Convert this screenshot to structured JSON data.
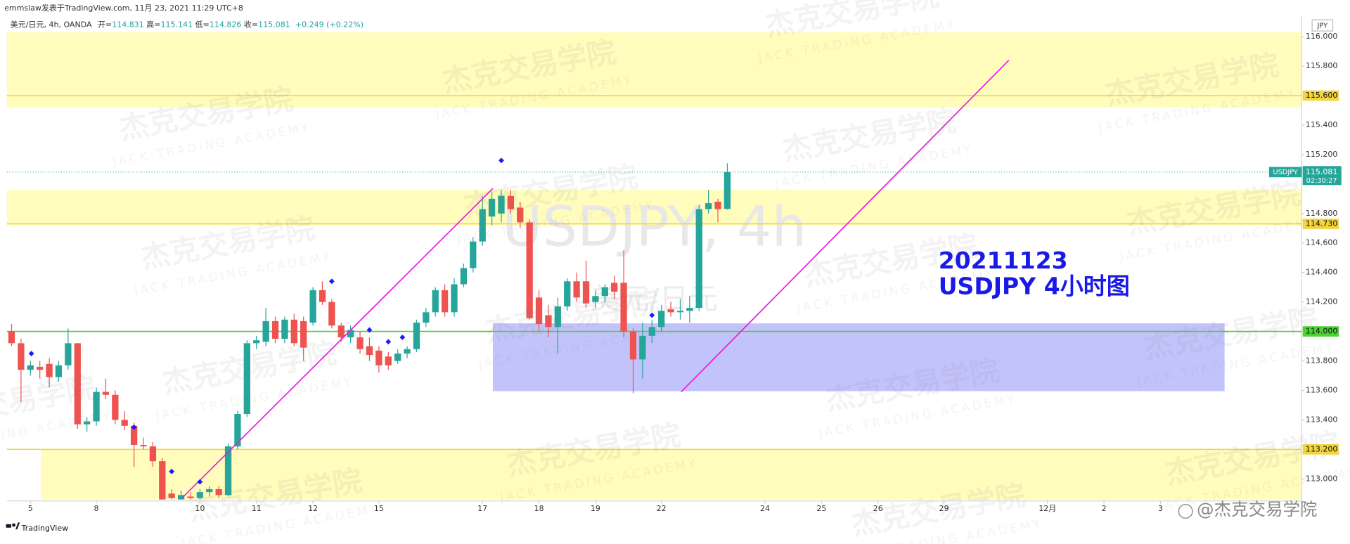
{
  "header": "emmslaw发表于TradingView.com, 11月 23, 2021 11:29 UTC+8",
  "chart_data": {
    "type": "candlestick",
    "title": "美元/日元, 4h, OANDA",
    "ohlc_labels": [
      "开=",
      "高=",
      "低=",
      "收="
    ],
    "change_label": "+0.249 (+0.22%)",
    "watermark": "USDJPY, 4h",
    "watermark_sub": "美元/日元",
    "brand_watermark": [
      "杰克交易学院",
      "JACK TRADING ACADEMY"
    ],
    "annotations": [
      "20211123",
      "USDJPY 4小时图"
    ],
    "currency": "JPY",
    "symbol": "USDJPY",
    "countdown": "02:30:27",
    "up_color": "#26a69a",
    "down_color": "#ef5350",
    "x": [
      0,
      1,
      2,
      3,
      4,
      5,
      6,
      7,
      8,
      9,
      10,
      11,
      12,
      13,
      14,
      15,
      16,
      17,
      18,
      19,
      20,
      21,
      22,
      23,
      24,
      25,
      26,
      27,
      28,
      29,
      30,
      31,
      32,
      33,
      34,
      35,
      36,
      37,
      38,
      39,
      40,
      41,
      42,
      43,
      44,
      45,
      46,
      47,
      48,
      49,
      50,
      51,
      52,
      53,
      54,
      55,
      56,
      57,
      58,
      59,
      60,
      61,
      62,
      63,
      64,
      65,
      66,
      67,
      68,
      69,
      70,
      71,
      72,
      73,
      74,
      75,
      76
    ],
    "open": [
      114.0,
      113.92,
      113.74,
      113.76,
      113.78,
      113.69,
      113.77,
      113.92,
      113.37,
      113.39,
      113.59,
      113.57,
      113.4,
      113.36,
      113.23,
      113.22,
      113.12,
      112.9,
      112.86,
      112.88,
      112.87,
      112.91,
      112.93,
      112.89,
      113.22,
      113.44,
      113.92,
      113.93,
      114.07,
      113.95,
      114.08,
      114.07,
      114.06,
      114.28,
      114.2,
      114.04,
      113.96,
      113.96,
      113.9,
      113.87,
      113.83,
      113.8,
      113.85,
      113.88,
      114.06,
      114.13,
      114.28,
      114.13,
      114.32,
      114.43,
      114.61,
      114.78,
      114.8,
      114.92,
      114.84,
      114.74,
      114.23,
      114.11,
      114.03,
      114.17,
      114.34,
      114.34,
      114.2,
      114.24,
      114.33,
      114.33,
      114.0,
      113.81,
      113.97,
      114.03,
      114.15,
      114.13,
      114.14,
      114.16,
      114.83,
      114.88,
      114.831
    ],
    "high": [
      114.05,
      113.95,
      113.8,
      113.8,
      113.82,
      113.8,
      114.02,
      113.92,
      113.42,
      113.62,
      113.68,
      113.6,
      113.46,
      113.38,
      113.28,
      113.25,
      113.14,
      112.93,
      112.92,
      112.91,
      112.93,
      112.95,
      112.95,
      113.24,
      113.46,
      113.94,
      113.97,
      114.16,
      114.1,
      114.1,
      114.12,
      114.1,
      114.3,
      114.34,
      114.22,
      114.06,
      114.04,
      114.0,
      113.96,
      113.9,
      113.86,
      113.88,
      113.9,
      114.08,
      114.16,
      114.3,
      114.32,
      114.36,
      114.46,
      114.64,
      114.92,
      114.95,
      114.96,
      114.96,
      114.88,
      114.76,
      114.28,
      114.18,
      114.23,
      114.36,
      114.4,
      114.48,
      114.28,
      114.32,
      114.38,
      114.55,
      114.02,
      114.06,
      114.08,
      114.18,
      114.2,
      114.22,
      114.24,
      114.86,
      114.96,
      114.9,
      115.141
    ],
    "low": [
      113.9,
      113.52,
      113.7,
      113.68,
      113.62,
      113.66,
      113.74,
      113.34,
      113.32,
      113.36,
      113.54,
      113.37,
      113.33,
      113.08,
      113.2,
      113.08,
      112.86,
      112.86,
      112.86,
      112.86,
      112.86,
      112.88,
      112.87,
      112.88,
      113.2,
      113.42,
      113.88,
      113.9,
      113.92,
      113.92,
      113.9,
      113.8,
      114.04,
      114.18,
      114.02,
      113.93,
      113.92,
      113.85,
      113.8,
      113.72,
      113.74,
      113.78,
      113.82,
      113.86,
      114.03,
      114.1,
      114.1,
      114.1,
      114.3,
      114.4,
      114.58,
      114.72,
      114.74,
      114.8,
      114.7,
      114.08,
      114.0,
      113.96,
      113.85,
      114.14,
      114.2,
      114.16,
      114.16,
      114.2,
      114.22,
      113.96,
      113.58,
      113.68,
      113.92,
      114.0,
      114.1,
      114.08,
      114.06,
      114.14,
      114.8,
      114.74,
      114.826
    ],
    "close": [
      113.92,
      113.74,
      113.77,
      113.74,
      113.69,
      113.77,
      113.92,
      113.37,
      113.39,
      113.59,
      113.57,
      113.4,
      113.36,
      113.23,
      113.22,
      113.12,
      112.86,
      112.87,
      112.89,
      112.87,
      112.91,
      112.93,
      112.89,
      113.22,
      113.44,
      113.92,
      113.94,
      114.07,
      113.95,
      114.08,
      113.92,
      113.89,
      114.28,
      114.2,
      114.04,
      113.96,
      114.01,
      113.88,
      113.84,
      113.77,
      113.77,
      113.85,
      113.88,
      114.06,
      114.13,
      114.28,
      114.13,
      114.32,
      114.43,
      114.61,
      114.83,
      114.9,
      114.92,
      114.83,
      114.74,
      114.09,
      114.05,
      114.03,
      114.17,
      114.34,
      114.23,
      114.19,
      114.24,
      114.3,
      114.27,
      114.0,
      113.81,
      113.97,
      114.03,
      114.14,
      114.13,
      114.14,
      114.16,
      114.83,
      114.87,
      114.83,
      115.081
    ],
    "markers": {
      "color": "#1a1aff",
      "x": [
        2.1,
        13.0,
        17.0,
        20.0,
        34.0,
        38.0,
        40.0,
        41.5,
        52.0,
        68.0
      ],
      "y": [
        113.85,
        113.35,
        113.05,
        112.98,
        114.34,
        114.01,
        113.93,
        113.96,
        115.16,
        114.11
      ]
    },
    "zones": [
      {
        "x": [
          -0.5,
          137
        ],
        "y": [
          115.52,
          116.03
        ],
        "color": "#fffbb0"
      },
      {
        "x": [
          -0.5,
          137
        ],
        "y": [
          114.72,
          114.96
        ],
        "color": "#fffbb0"
      },
      {
        "x": [
          3.1,
          137
        ],
        "y": [
          112.86,
          113.2
        ],
        "color": "#fffbb0"
      },
      {
        "x": [
          51.1,
          128.8
        ],
        "y": [
          113.595,
          114.055
        ],
        "color": "#b9b9fb"
      }
    ],
    "trend_lines": [
      {
        "x": [
          18.1,
          51.1
        ],
        "y": [
          112.87,
          114.97
        ],
        "color": "#e91ee0"
      },
      {
        "x": [
          71.1,
          105.9
        ],
        "y": [
          113.59,
          115.84
        ],
        "color": "#e91ee0"
      }
    ],
    "levels": [
      {
        "value": 115.6,
        "label": "115.600",
        "color": "#f2d43d"
      },
      {
        "value": 114.73,
        "label": "114.730",
        "color": "#f2d43d"
      },
      {
        "value": 114.0,
        "label": "114.000",
        "color": "#4cd137"
      },
      {
        "value": 113.2,
        "label": "113.200",
        "color": "#f2d43d"
      }
    ],
    "xlim": [
      -0.5,
      137
    ],
    "xticks": [
      {
        "value": 2.0,
        "label": "5"
      },
      {
        "value": 9.0,
        "label": "8"
      },
      {
        "value": 20.0,
        "label": "10"
      },
      {
        "value": 26.0,
        "label": "11"
      },
      {
        "value": 32.0,
        "label": "12"
      },
      {
        "value": 39.0,
        "label": "15"
      },
      {
        "value": 50.0,
        "label": "17"
      },
      {
        "value": 56.0,
        "label": "18"
      },
      {
        "value": 62.0,
        "label": "19"
      },
      {
        "value": 69.0,
        "label": "22"
      },
      {
        "value": 80.0,
        "label": "24"
      },
      {
        "value": 86.0,
        "label": "25"
      },
      {
        "value": 92.0,
        "label": "26"
      },
      {
        "value": 99.0,
        "label": "29"
      },
      {
        "value": 110.0,
        "label": "12月"
      },
      {
        "value": 116.0,
        "label": "2"
      },
      {
        "value": 122.0,
        "label": "3"
      }
    ],
    "ylim": [
      112.85,
      116.12
    ],
    "yticks": [
      {
        "value": 113.0,
        "label": "113.000"
      },
      {
        "value": 113.4,
        "label": "113.400"
      },
      {
        "value": 113.6,
        "label": "113.600"
      },
      {
        "value": 113.8,
        "label": "113.800"
      },
      {
        "value": 114.2,
        "label": "114.200"
      },
      {
        "value": 114.4,
        "label": "114.400"
      },
      {
        "value": 114.6,
        "label": "114.600"
      },
      {
        "value": 114.8,
        "label": "114.800"
      },
      {
        "value": 115.2,
        "label": "115.200"
      },
      {
        "value": 115.4,
        "label": "115.400"
      },
      {
        "value": 115.8,
        "label": "115.800"
      },
      {
        "value": 116.0,
        "label": "116.000"
      }
    ],
    "grid": false
  },
  "footer": {
    "brand": "TradingView",
    "author": "@杰克交易学院"
  }
}
